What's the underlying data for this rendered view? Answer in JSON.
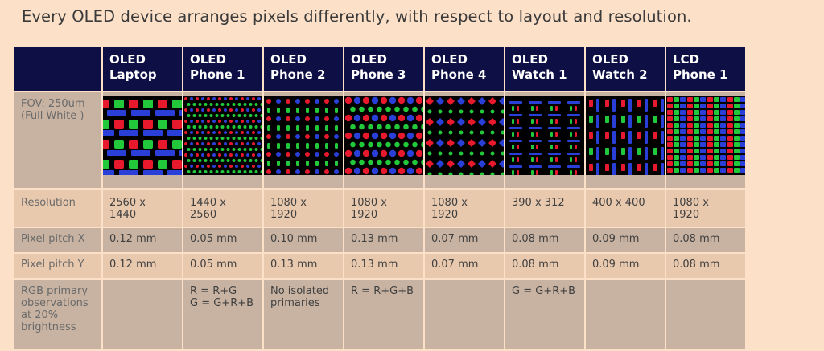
{
  "title": "Every OLED device arranges pixels differently, with respect to layout and resolution.",
  "columns": [
    {
      "line1": "OLED",
      "line2": "Laptop"
    },
    {
      "line1": "OLED",
      "line2": "Phone 1"
    },
    {
      "line1": "OLED",
      "line2": "Phone 2"
    },
    {
      "line1": "OLED",
      "line2": "Phone 3"
    },
    {
      "line1": "OLED",
      "line2": "Phone 4"
    },
    {
      "line1": "OLED",
      "line2": "Watch 1"
    },
    {
      "line1": "OLED",
      "line2": "Watch 2"
    },
    {
      "line1": "LCD",
      "line2": "Phone 1"
    }
  ],
  "rows": {
    "fov_label": "FOV: 250um\n(Full White )",
    "resolution_label": "Resolution",
    "pitch_x_label": "Pixel pitch X",
    "pitch_y_label": "Pixel pitch Y",
    "rgb_label": "RGB primary\nobservations\nat 20%\nbrightness"
  },
  "resolution": [
    "2560 x 1440",
    "1440 x 2560",
    "1080 x 1920",
    "1080 x 1920",
    "1080 x 1920",
    "390 x 312",
    "400 x 400",
    "1080 x 1920"
  ],
  "pitch_x": [
    "0.12 mm",
    "0.05 mm",
    "0.10 mm",
    "0.13 mm",
    "0.07 mm",
    "0.08 mm",
    "0.09 mm",
    "0.08 mm"
  ],
  "pitch_y": [
    "0.12 mm",
    "0.05 mm",
    "0.13 mm",
    "0.13 mm",
    "0.07 mm",
    "0.08 mm",
    "0.09 mm",
    "0.08 mm"
  ],
  "rgb_obs": [
    "",
    "R = R+G\nG = G+R+B",
    "No isolated\nprimaries",
    "R = R+G+B",
    "",
    "G = G+R+B",
    "",
    ""
  ],
  "colors": {
    "header_bg": "#0d0f45",
    "background": "#fde0c8",
    "red": "#e8192c",
    "green": "#22c93a",
    "blue": "#2a3fd8"
  },
  "microscope_images": [
    "oled-laptop-subpixels",
    "oled-phone-1-subpixels",
    "oled-phone-2-subpixels",
    "oled-phone-3-subpixels",
    "oled-phone-4-subpixels",
    "oled-watch-1-subpixels",
    "oled-watch-2-subpixels",
    "lcd-phone-1-subpixels"
  ]
}
